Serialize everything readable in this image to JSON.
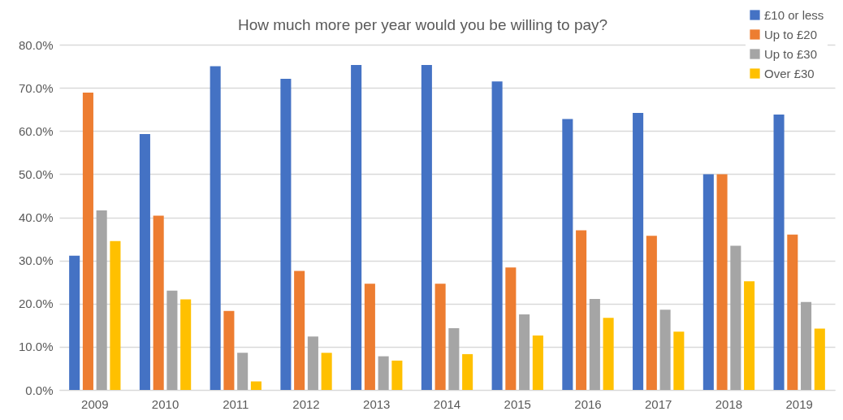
{
  "chart_data": {
    "type": "bar",
    "title": "How much more per year would you be willing to pay?",
    "categories": [
      "2009",
      "2010",
      "2011",
      "2012",
      "2013",
      "2014",
      "2015",
      "2016",
      "2017",
      "2018",
      "2019"
    ],
    "series": [
      {
        "name": "£10 or less",
        "color": "#4472c4",
        "values": [
          31.1,
          59.3,
          75.0,
          72.1,
          75.3,
          75.3,
          71.5,
          62.8,
          64.2,
          50.0,
          63.8
        ]
      },
      {
        "name": "Up to £20",
        "color": "#ed7d31",
        "values": [
          68.9,
          40.4,
          18.3,
          27.6,
          24.6,
          24.6,
          28.4,
          37.0,
          35.7,
          50.0,
          36.0
        ]
      },
      {
        "name": "Up to £30",
        "color": "#a5a5a5",
        "values": [
          41.6,
          23.0,
          8.6,
          12.4,
          7.8,
          14.3,
          17.5,
          21.1,
          18.6,
          33.4,
          20.4
        ]
      },
      {
        "name": "Over £30",
        "color": "#ffc000",
        "values": [
          34.5,
          21.0,
          2.0,
          8.6,
          6.8,
          8.3,
          12.6,
          16.7,
          13.5,
          25.2,
          14.2
        ]
      }
    ],
    "ylim": [
      0,
      80
    ],
    "yticks": [
      {
        "value": 0,
        "label": "0.0%"
      },
      {
        "value": 10,
        "label": "10.0%"
      },
      {
        "value": 20,
        "label": "20.0%"
      },
      {
        "value": 30,
        "label": "30.0%"
      },
      {
        "value": 40,
        "label": "40.0%"
      },
      {
        "value": 50,
        "label": "50.0%"
      },
      {
        "value": 60,
        "label": "60.0%"
      },
      {
        "value": 70,
        "label": "70.0%"
      },
      {
        "value": 80,
        "label": "80.0%"
      }
    ],
    "grid": "y",
    "legend": "top right"
  }
}
